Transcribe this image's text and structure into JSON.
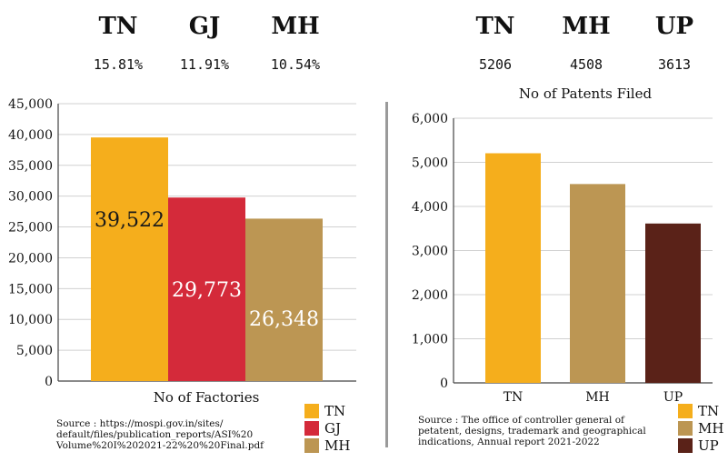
{
  "left": {
    "headers": [
      {
        "state": "TN",
        "share": "15.81%"
      },
      {
        "state": "GJ",
        "share": "11.91%"
      },
      {
        "state": "MH",
        "share": "10.54%"
      }
    ],
    "source": [
      "Source : https://mospi.gov.in/sites/",
      "default/files/publication_reports/ASI%20",
      "Volume%20I%202021-22%20%20Final.pdf"
    ],
    "legend": [
      {
        "label": "TN",
        "color": "#F5AE1C"
      },
      {
        "label": "GJ",
        "color": "#D42A3A"
      },
      {
        "label": "MH",
        "color": "#BC9653"
      }
    ]
  },
  "right": {
    "headers": [
      {
        "state": "TN",
        "value": "5206"
      },
      {
        "state": "MH",
        "value": "4508"
      },
      {
        "state": "UP",
        "value": "3613"
      }
    ],
    "source": [
      "Source : The office of controller general of",
      "petatent, designs, trademark and geographical",
      "indications, Annual report 2021-2022"
    ],
    "legend": [
      {
        "label": "TN",
        "color": "#F5AE1C"
      },
      {
        "label": "MH",
        "color": "#BC9653"
      },
      {
        "label": "UP",
        "color": "#5A2218"
      }
    ]
  },
  "chart_data": [
    {
      "type": "bar",
      "title": "",
      "xlabel": "No of Factories",
      "ylabel": "",
      "categories": [
        "TN",
        "GJ",
        "MH"
      ],
      "values": [
        39522,
        29773,
        26348
      ],
      "value_labels": [
        "39,522",
        "29,773",
        "26,348"
      ],
      "colors": [
        "#F5AE1C",
        "#D42A3A",
        "#BC9653"
      ],
      "label_colors": [
        "#1a1a1a",
        "#ffffff",
        "#ffffff"
      ],
      "yticks": [
        "0",
        "5,000",
        "10,000",
        "15,000",
        "20,000",
        "25,000",
        "30,000",
        "35,000",
        "40,000",
        "45,000"
      ],
      "ylim": [
        0,
        45000
      ],
      "grid": true
    },
    {
      "type": "bar",
      "title": "No of Patents Filed",
      "xlabel": "",
      "ylabel": "",
      "categories": [
        "TN",
        "MH",
        "UP"
      ],
      "values": [
        5206,
        4508,
        3613
      ],
      "colors": [
        "#F5AE1C",
        "#BC9653",
        "#5A2218"
      ],
      "yticks": [
        "0",
        "1,000",
        "2,000",
        "3,000",
        "4,000",
        "5,000",
        "6,000"
      ],
      "ylim": [
        0,
        6000
      ],
      "grid": true
    }
  ]
}
